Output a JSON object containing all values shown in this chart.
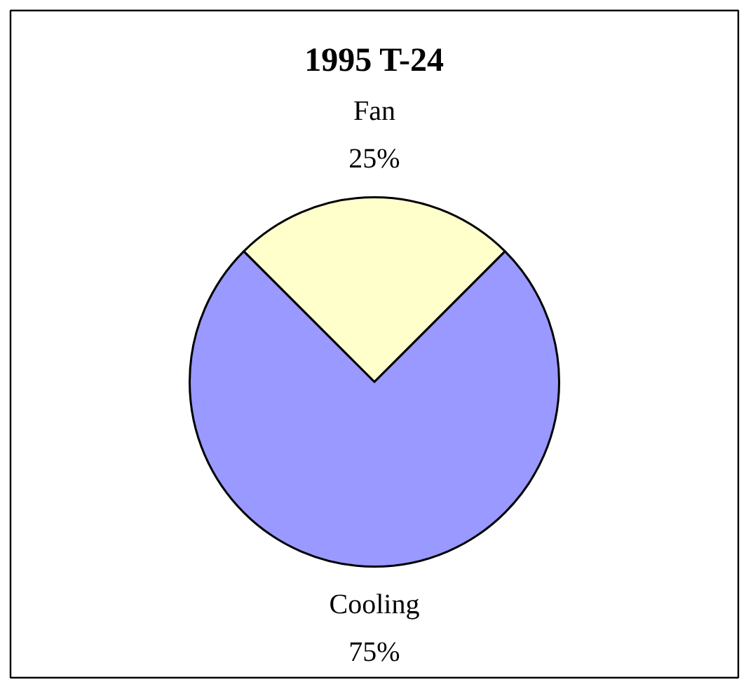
{
  "chart_data": {
    "type": "pie",
    "title": "1995 T-24",
    "categories": [
      "Fan",
      "Cooling"
    ],
    "values": [
      25,
      75
    ],
    "colors": [
      "#ffffcc",
      "#9999ff"
    ],
    "value_labels": [
      "25%",
      "75%"
    ]
  }
}
